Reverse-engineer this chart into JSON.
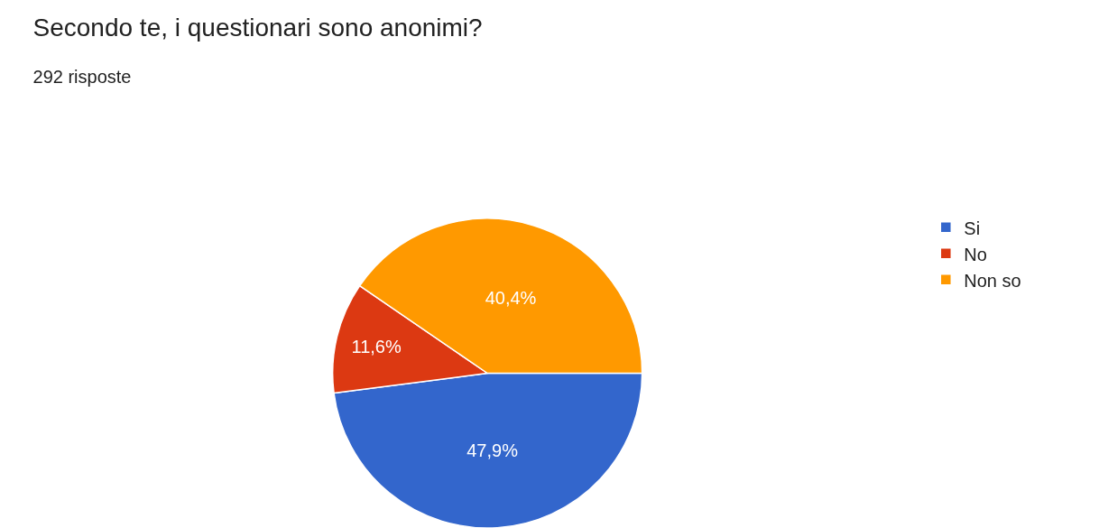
{
  "chart_data": {
    "type": "pie",
    "title": "Secondo te, i questionari sono anonimi?",
    "subtitle": "292 risposte",
    "categories": [
      "Si",
      "No",
      "Non so"
    ],
    "values": [
      47.9,
      11.6,
      40.4
    ],
    "colors": [
      "#3366cc",
      "#dc3912",
      "#ff9900"
    ],
    "value_labels": [
      "47,9%",
      "11,6%",
      "40,4%"
    ],
    "legend": "top right"
  }
}
